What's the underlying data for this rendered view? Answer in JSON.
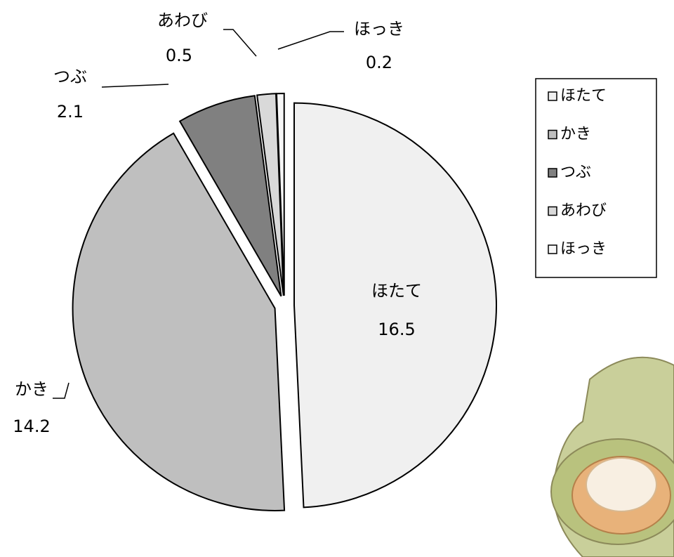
{
  "chart_data": {
    "type": "pie",
    "categories": [
      "ほたて",
      "かき",
      "つぶ",
      "あわび",
      "ほっき"
    ],
    "values": [
      16.5,
      14.2,
      2.1,
      0.5,
      0.2
    ],
    "colors": [
      "#f0f0f0",
      "#bfbfbf",
      "#808080",
      "#d9d9d9",
      "#f7f7f7"
    ],
    "legend": "right"
  }
}
